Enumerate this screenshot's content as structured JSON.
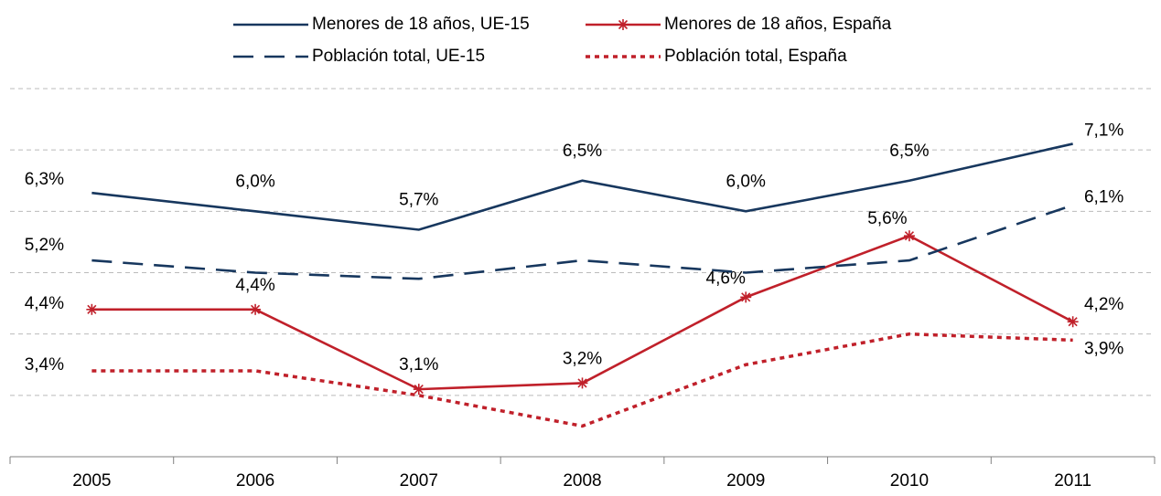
{
  "chart_data": {
    "type": "line",
    "categories": [
      "2005",
      "2006",
      "2007",
      "2008",
      "2009",
      "2010",
      "2011"
    ],
    "series": [
      {
        "name": "Menores de 18 años, UE-15",
        "color": "#17375e",
        "style": "solid",
        "values": [
          6.3,
          6.0,
          5.7,
          6.5,
          6.0,
          6.5,
          7.1
        ],
        "value_labels": [
          "6,3%",
          "6,0%",
          "5,7%",
          "6,5%",
          "6,0%",
          "6,5%",
          "7,1%"
        ]
      },
      {
        "name": "Menores de 18 años, España",
        "color": "#c0202a",
        "style": "solid",
        "marker": "star",
        "values": [
          4.4,
          4.4,
          3.1,
          3.2,
          4.6,
          5.6,
          4.2
        ],
        "value_labels": [
          "4,4%",
          "4,4%",
          "3,1%",
          "3,2%",
          "4,6%",
          "5,6%",
          "4,2%"
        ]
      },
      {
        "name": "Población total, UE-15",
        "color": "#17375e",
        "style": "dashed",
        "values": [
          5.2,
          5.0,
          4.9,
          5.2,
          5.0,
          5.2,
          6.1
        ],
        "value_labels": [
          "5,2%",
          null,
          null,
          null,
          null,
          null,
          "6,1%"
        ]
      },
      {
        "name": "Población total, España",
        "color": "#c0202a",
        "style": "dotted",
        "values": [
          3.4,
          3.4,
          3.0,
          2.5,
          3.5,
          4.0,
          3.9
        ],
        "value_labels": [
          "3,4%",
          null,
          null,
          null,
          null,
          null,
          "3,9%"
        ]
      }
    ],
    "ylim": [
      2,
      8
    ],
    "yticks": [
      2,
      3,
      4,
      5,
      6,
      7,
      8
    ],
    "grid": true,
    "legend": "top"
  }
}
